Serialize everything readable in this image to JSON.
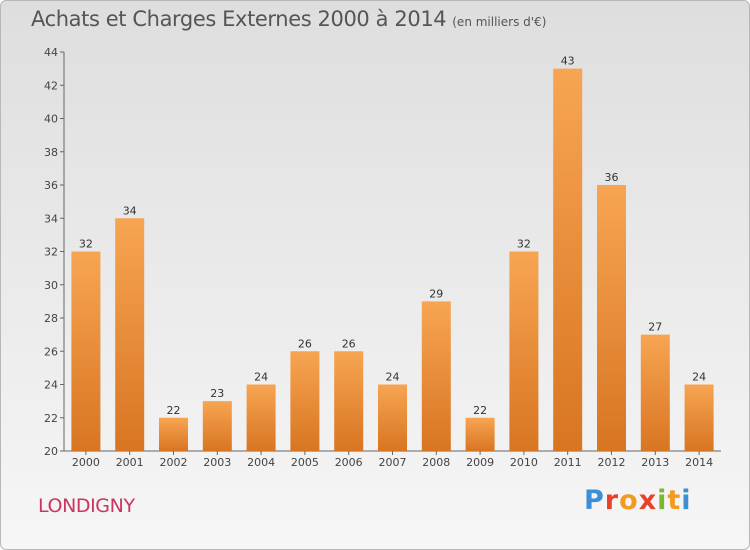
{
  "title": "Achats et Charges Externes 2000 à 2014",
  "unit": "(en milliers d'€)",
  "city": "LONDIGNY",
  "brand": "Proxiti",
  "chart_data": {
    "type": "bar",
    "categories": [
      "2000",
      "2001",
      "2002",
      "2003",
      "2004",
      "2005",
      "2006",
      "2007",
      "2008",
      "2009",
      "2010",
      "2011",
      "2012",
      "2013",
      "2014"
    ],
    "values": [
      32,
      34,
      22,
      23,
      24,
      26,
      26,
      24,
      29,
      22,
      32,
      43,
      36,
      27,
      24
    ],
    "ylim": [
      20,
      44
    ],
    "yticks": [
      20,
      22,
      24,
      26,
      28,
      30,
      32,
      34,
      36,
      38,
      40,
      42,
      44
    ],
    "grid": false,
    "bar_color": "#f0923a",
    "label_color": "#333333"
  }
}
